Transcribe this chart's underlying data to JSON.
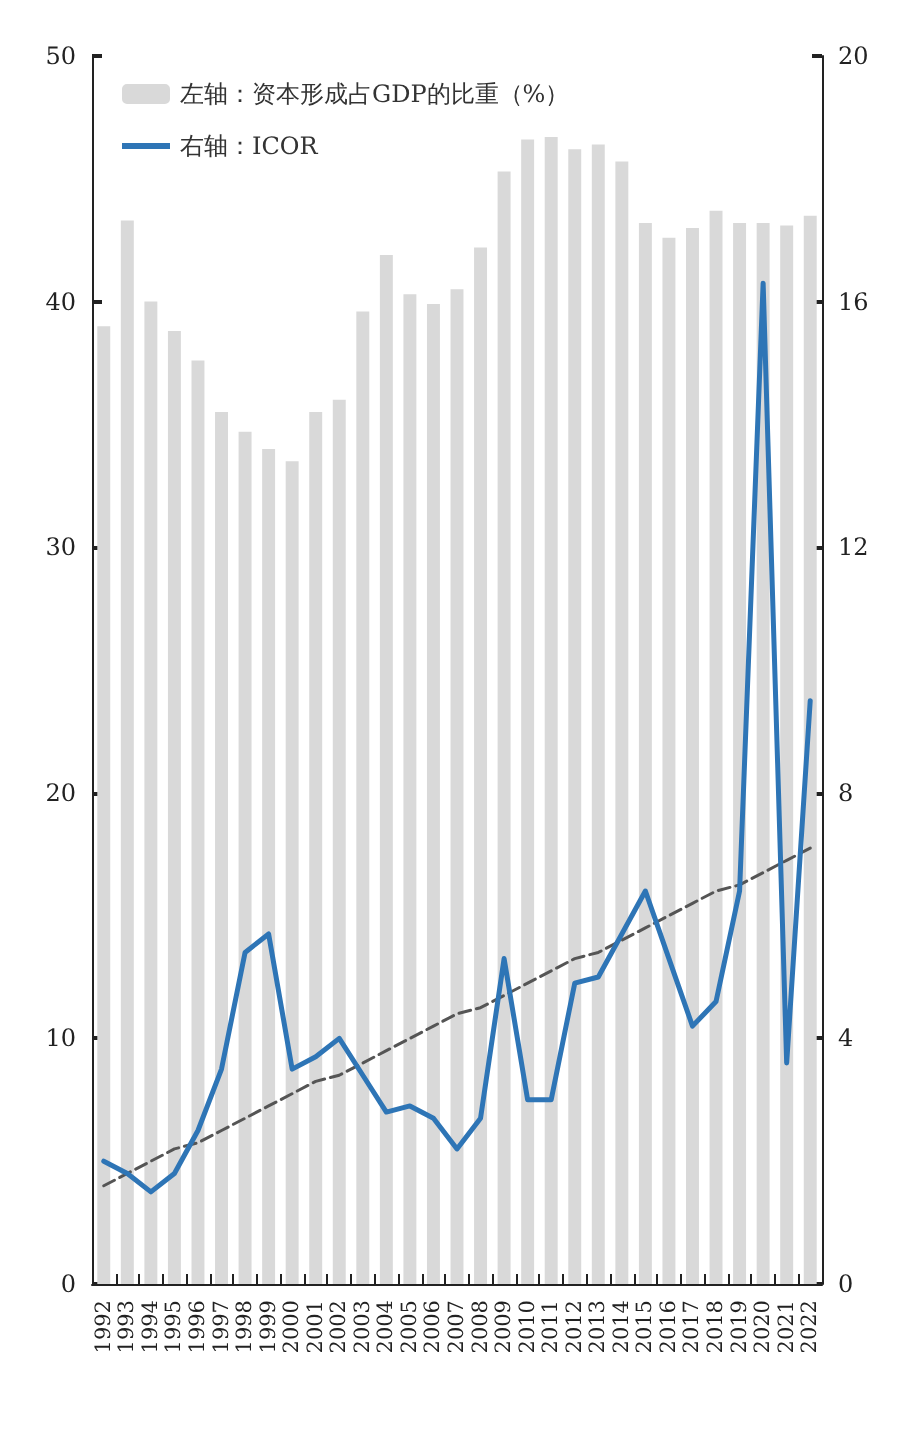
{
  "chart_data": {
    "type": "bar",
    "categories": [
      "1992",
      "1993",
      "1994",
      "1995",
      "1996",
      "1997",
      "1998",
      "1999",
      "2000",
      "2001",
      "2002",
      "2003",
      "2004",
      "2005",
      "2006",
      "2007",
      "2008",
      "2009",
      "2010",
      "2011",
      "2012",
      "2013",
      "2014",
      "2015",
      "2016",
      "2017",
      "2018",
      "2019",
      "2020",
      "2021",
      "2022"
    ],
    "series": [
      {
        "name": "左轴：资本形成占GDP的比重（%）",
        "color": "#d9d9d9",
        "values": [
          39.0,
          43.3,
          40.0,
          38.8,
          37.6,
          35.5,
          34.7,
          34.0,
          33.5,
          35.5,
          36.0,
          39.6,
          41.9,
          40.3,
          39.9,
          40.5,
          42.2,
          45.3,
          46.6,
          46.7,
          46.2,
          46.4,
          45.7,
          43.2,
          42.6,
          43.0,
          43.7,
          43.2,
          43.2,
          43.1,
          43.5
        ]
      },
      {
        "name": "右轴：ICOR",
        "type": "line",
        "axis": "y2",
        "color": "#2e75b6",
        "line_style": "solid",
        "values": [
          2.0,
          1.8,
          1.5,
          1.8,
          2.5,
          3.5,
          5.4,
          5.7,
          3.5,
          3.7,
          4.0,
          3.4,
          2.8,
          2.9,
          2.7,
          2.2,
          2.7,
          5.3,
          3.0,
          3.0,
          4.9,
          5.0,
          5.7,
          6.4,
          5.3,
          4.2,
          4.6,
          6.4,
          16.3,
          3.6,
          9.5
        ]
      },
      {
        "type": "line",
        "axis": "y2",
        "color": "#555555",
        "line_style": "dashed",
        "values": [
          1.6,
          1.8,
          2.0,
          2.2,
          2.3,
          2.5,
          2.7,
          2.9,
          3.1,
          3.3,
          3.4,
          3.6,
          3.8,
          4.0,
          4.2,
          4.4,
          4.5,
          4.7,
          4.9,
          5.1,
          5.3,
          5.4,
          5.6,
          5.8,
          6.0,
          6.2,
          6.4,
          6.5,
          6.7,
          6.9,
          7.1
        ]
      }
    ],
    "ylim": [
      0,
      50
    ],
    "yticks": [
      0,
      10,
      20,
      30,
      40,
      50
    ],
    "y2lim": [
      0,
      20
    ],
    "y2ticks": [
      0,
      4,
      8,
      12,
      16,
      20
    ],
    "grid": false,
    "legend": "top left",
    "marker": "none"
  }
}
